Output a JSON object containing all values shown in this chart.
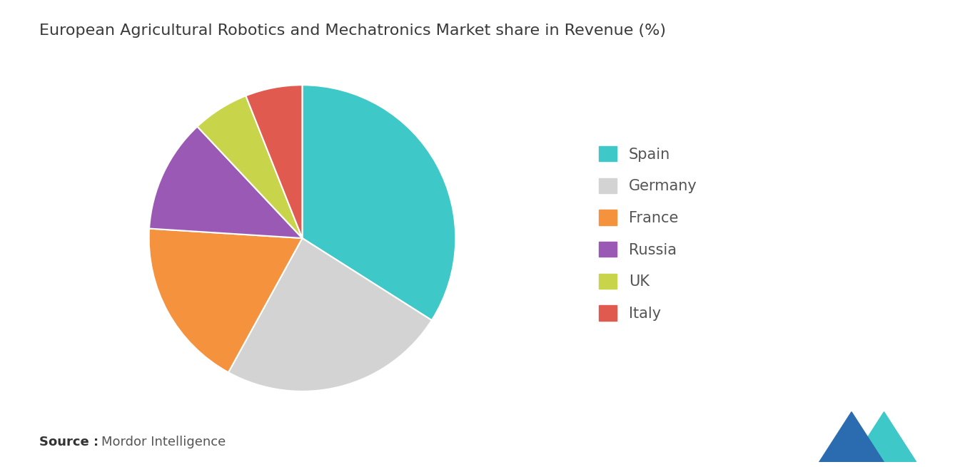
{
  "title": "European Agricultural Robotics and Mechatronics Market share in Revenue (%)",
  "labels": [
    "Spain",
    "Germany",
    "France",
    "Russia",
    "UK",
    "Italy"
  ],
  "values": [
    34,
    24,
    18,
    12,
    6,
    6
  ],
  "colors": [
    "#3ec8c8",
    "#d3d3d3",
    "#f5923e",
    "#9b59b6",
    "#c8d44a",
    "#e05a4f"
  ],
  "source_bold": "Source :",
  "source_normal": "Mordor Intelligence",
  "background_color": "#ffffff",
  "title_fontsize": 16,
  "legend_fontsize": 15,
  "source_fontsize": 13,
  "startangle": 90
}
